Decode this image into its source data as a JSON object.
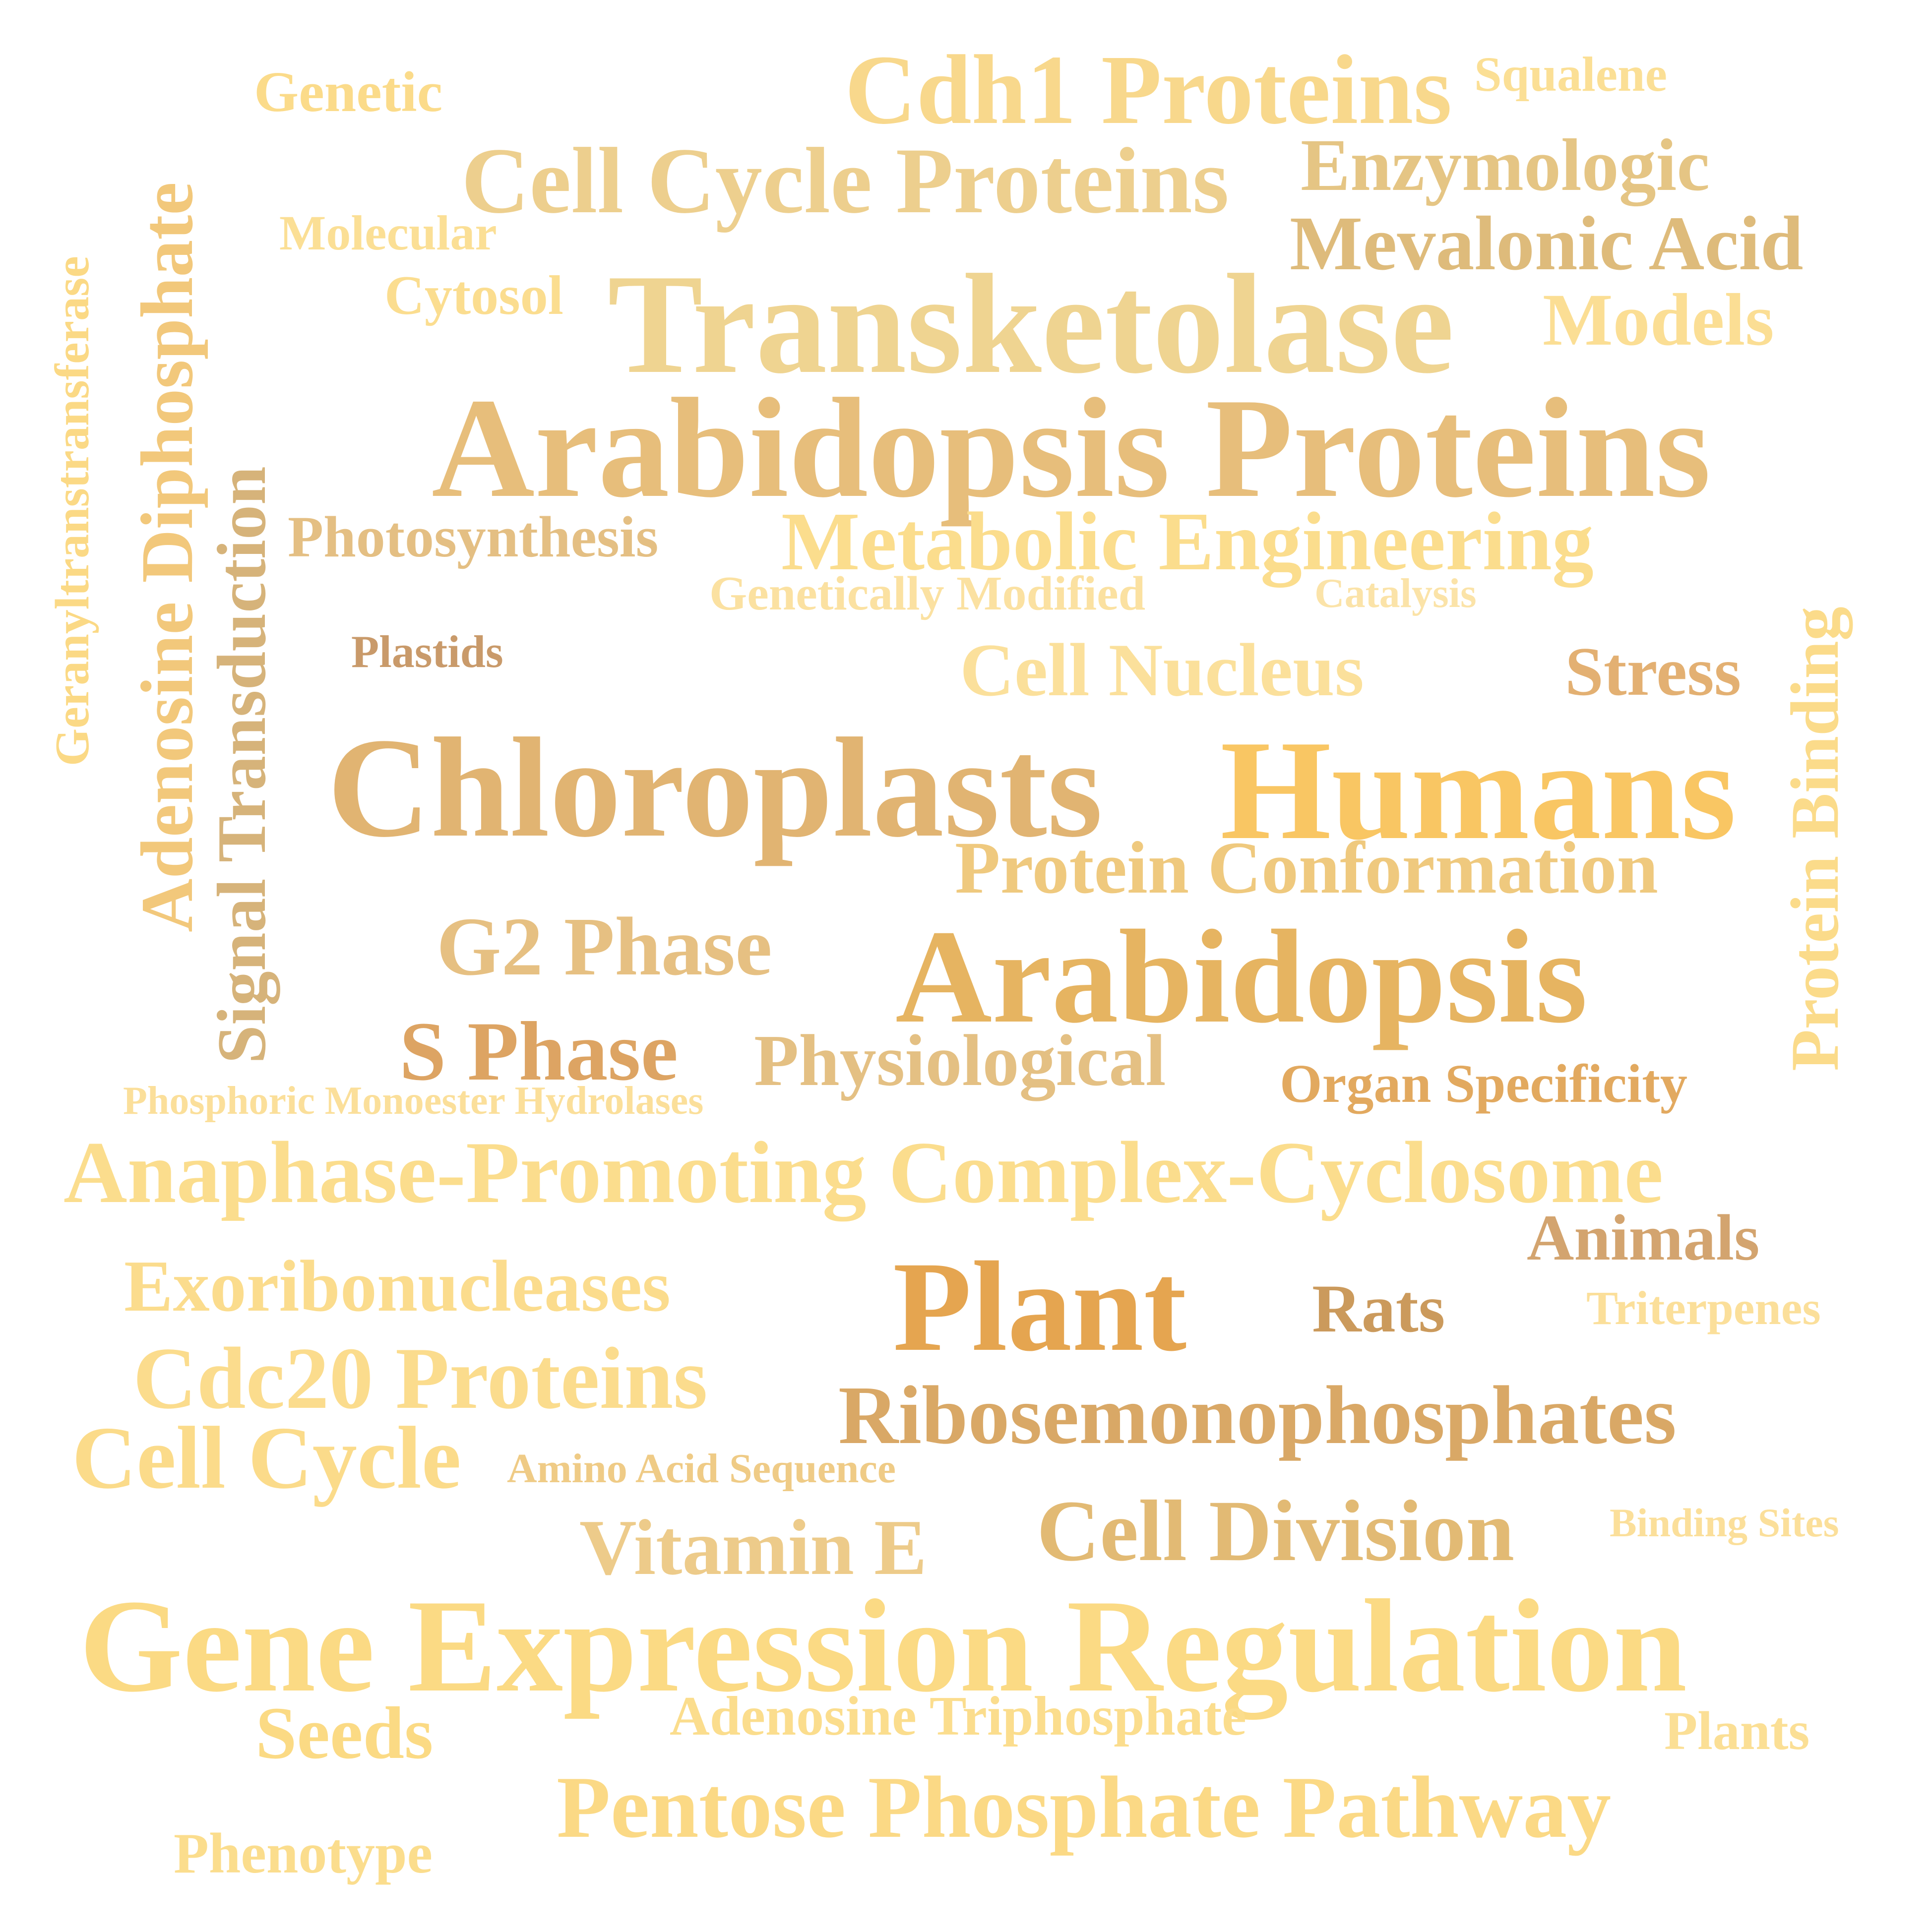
{
  "words": {
    "geranyltranstransferase": {
      "text": "Geranyltranstransferase",
      "color": "#FBD985"
    },
    "adenosine_diphosphate": {
      "text": "Adenosine Diphosphate",
      "color": "#F2C87B"
    },
    "signal_transduction": {
      "text": "Signal Transduction",
      "color": "#D6B37A"
    },
    "protein_binding": {
      "text": "Protein Binding",
      "color": "#FBDB8A"
    },
    "genetic": {
      "text": "Genetic",
      "color": "#FBDB8A"
    },
    "cdh1_proteins": {
      "text": "Cdh1 Proteins",
      "color": "#F8D88C"
    },
    "squalene": {
      "text": "Squalene",
      "color": "#FBDF95"
    },
    "cell_cycle_proteins": {
      "text": "Cell Cycle Proteins",
      "color": "#EDCF8E"
    },
    "enzymologic": {
      "text": "Enzymologic",
      "color": "#E5C584"
    },
    "molecular": {
      "text": "Molecular",
      "color": "#FBDF95"
    },
    "mevalonic_acid": {
      "text": "Mevalonic Acid",
      "color": "#DEBB7B"
    },
    "cytosol": {
      "text": "Cytosol",
      "color": "#FBDD8F"
    },
    "transketolase": {
      "text": "Transketolase",
      "color": "#EFD491"
    },
    "models": {
      "text": "Models",
      "color": "#FBDE94"
    },
    "arabidopsis_proteins": {
      "text": "Arabidopsis Proteins",
      "color": "#E7BE7B"
    },
    "photosynthesis": {
      "text": "Photosynthesis",
      "color": "#E4BF83"
    },
    "metabolic_engineering": {
      "text": "Metabolic Engineering",
      "color": "#FBDD8D"
    },
    "genetically_modified": {
      "text": "Genetically Modified",
      "color": "#FBE1A1"
    },
    "catalysis": {
      "text": "Catalysis",
      "color": "#FBE3A8"
    },
    "plastids": {
      "text": "Plastids",
      "color": "#C99A6A"
    },
    "cell_nucleus": {
      "text": "Cell Nucleus",
      "color": "#FBE09B"
    },
    "stress": {
      "text": "Stress",
      "color": "#E3B072"
    },
    "chloroplasts": {
      "text": "Chloroplasts",
      "color": "#E1B472"
    },
    "humans": {
      "text": "Humans",
      "color": "#F9C663"
    },
    "protein_conformation": {
      "text": "Protein Conformation",
      "color": "#EFC97E"
    },
    "g2_phase": {
      "text": "G2 Phase",
      "color": "#E6C082"
    },
    "arabidopsis": {
      "text": "Arabidopsis",
      "color": "#E6B461"
    },
    "s_phase": {
      "text": "S Phase",
      "color": "#DDA463"
    },
    "physiological": {
      "text": "Physiological",
      "color": "#E4C083"
    },
    "organ_specificity": {
      "text": "Organ Specificity",
      "color": "#E2A95F"
    },
    "phosphoric_monoester_hydrolases": {
      "text": "Phosphoric Monoester Hydrolases",
      "color": "#FBDF9A"
    },
    "anaphase_promoting": {
      "text": "Anaphase-Promoting Complex-Cyclosome",
      "color": "#FBDD8D"
    },
    "animals": {
      "text": "Animals",
      "color": "#D3A46F"
    },
    "exoribonucleases": {
      "text": "Exoribonucleases",
      "color": "#FBDC8D"
    },
    "plant": {
      "text": "Plant",
      "color": "#E5A550"
    },
    "rats": {
      "text": "Rats",
      "color": "#CB9A5C"
    },
    "triterpenes": {
      "text": "Triterpenes",
      "color": "#FBDF9A"
    },
    "cdc20_proteins": {
      "text": "Cdc20 Proteins",
      "color": "#FBDC8D"
    },
    "ribosemonophosphates": {
      "text": "Ribosemonophosphates",
      "color": "#D9A866"
    },
    "cell_cycle": {
      "text": "Cell Cycle",
      "color": "#FBDB8A"
    },
    "amino_acid_sequence": {
      "text": "Amino Acid Sequence",
      "color": "#EFCB86"
    },
    "vitamin_e": {
      "text": "Vitamin E",
      "color": "#EDCB8A"
    },
    "cell_division": {
      "text": "Cell Division",
      "color": "#E2BA74"
    },
    "binding_sites": {
      "text": "Binding Sites",
      "color": "#FBDF9A"
    },
    "gene_expression_regulation": {
      "text": "Gene Expression Regulation",
      "color": "#FBDA84"
    },
    "seeds": {
      "text": "Seeds",
      "color": "#FBDA84"
    },
    "adenosine_triphosphate": {
      "text": "Adenosine Triphosphate",
      "color": "#FBDD8D"
    },
    "plants": {
      "text": "Plants",
      "color": "#FBDF95"
    },
    "pentose_phosphate_pathway": {
      "text": "Pentose Phosphate Pathway",
      "color": "#FBD985"
    },
    "phenotype": {
      "text": "Phenotype",
      "color": "#FBDD8D"
    }
  }
}
